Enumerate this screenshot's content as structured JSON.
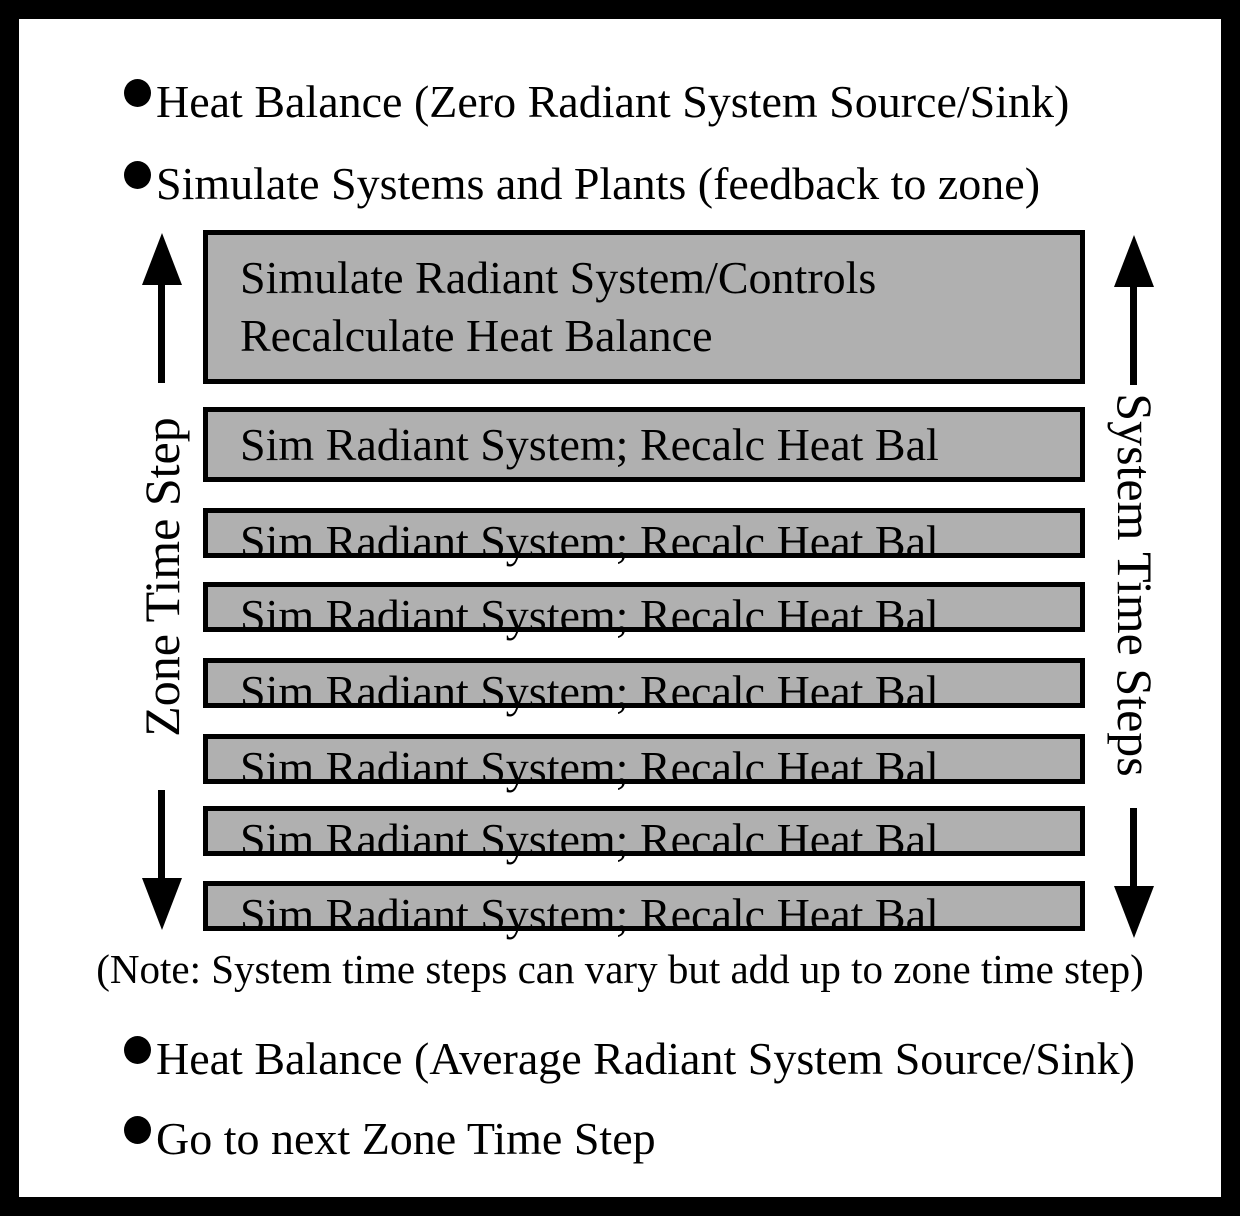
{
  "colors": {
    "box-fill": "#b0b0b0",
    "line": "#000000",
    "bg": "#ffffff",
    "text": "#000000"
  },
  "top_bullets": [
    "Heat Balance (Zero Radiant System Source/Sink)",
    "Simulate Systems and Plants (feedback to zone)"
  ],
  "diagram": {
    "main_box": {
      "line1": "Simulate Radiant System/Controls",
      "line2": "Recalculate Heat Balance"
    },
    "sim_boxes": [
      "Sim Radiant System; Recalc Heat Bal",
      "Sim Radiant System; Recalc Heat Bal",
      "Sim Radiant System; Recalc Heat Bal",
      "Sim Radiant System; Recalc Heat Bal",
      "Sim Radiant System; Recalc Heat Bal",
      "Sim Radiant System; Recalc Heat Bal",
      "Sim Radiant System; Recalc Heat Bal"
    ],
    "left_axis_label": "Zone Time Step",
    "right_axis_label": "System Time Steps",
    "note": "(Note: System time steps can vary but add up to zone time step)"
  },
  "bottom_bullets": [
    "Heat Balance (Average Radiant System Source/Sink)",
    "Go to next Zone Time Step"
  ]
}
